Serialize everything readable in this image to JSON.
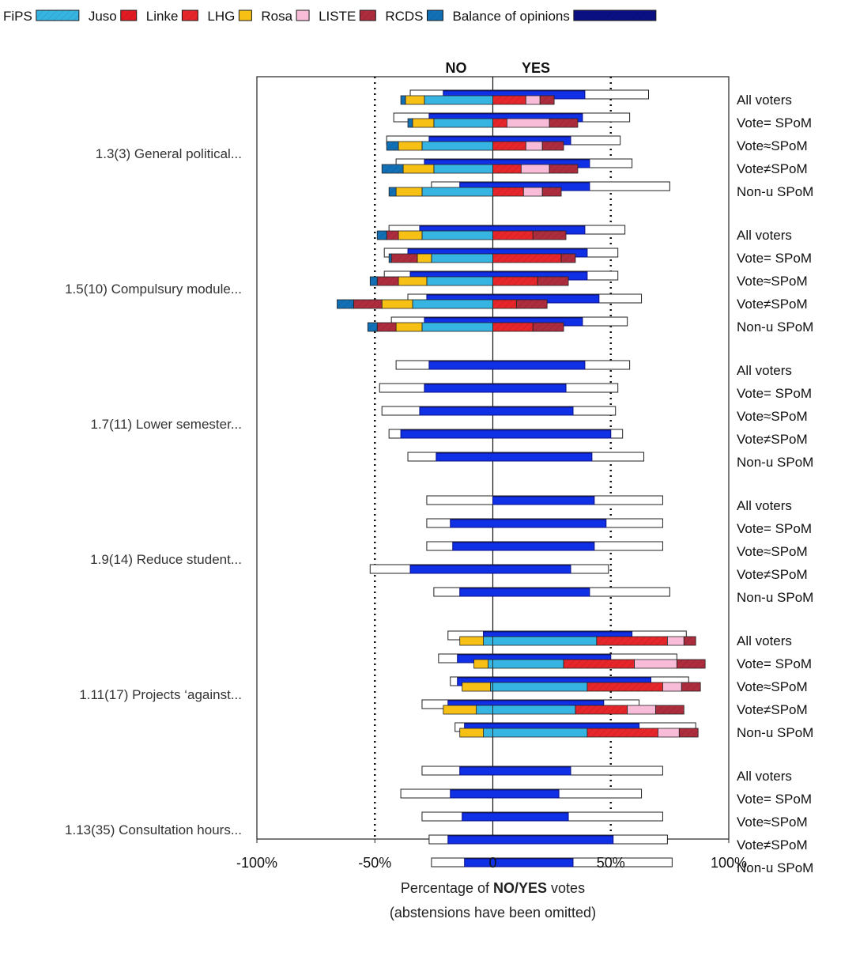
{
  "chart_data": {
    "type": "bar",
    "orientation": "horizontal-diverging",
    "header_no": "NO",
    "header_yes": "YES",
    "xlabel_prefix": "Percentage of ",
    "xlabel_bold": "NO/YES",
    "xlabel_suffix": " votes",
    "xlabel_note": "(abstensions have been omitted)",
    "xlim": [
      -100,
      100
    ],
    "x_ticks": [
      -100,
      -50,
      0,
      50,
      100
    ],
    "x_tick_labels": [
      "-100%",
      "-50%",
      "0",
      "50%",
      "100%"
    ],
    "dotted_reference_lines": [
      -50,
      50
    ],
    "legend_position": "top",
    "legend": [
      {
        "name": "FiPS",
        "color": "#36b4e2",
        "swatch": "long"
      },
      {
        "name": "Juso",
        "color": "#e21a22",
        "swatch": "hatched"
      },
      {
        "name": "Linke",
        "color": "#e6262a",
        "swatch": "hatched"
      },
      {
        "name": "LHG",
        "color": "#f6c015",
        "swatch": "plain"
      },
      {
        "name": "Rosa",
        "color": "#f8bcd8",
        "swatch": "plain"
      },
      {
        "name": "LISTE",
        "color": "#ad2c3d",
        "swatch": "hatched"
      },
      {
        "name": "RCDS",
        "color": "#1270b6",
        "swatch": "hatched"
      },
      {
        "name": "Balance of opinions",
        "color": "#0a0f84",
        "swatch": "balance"
      }
    ],
    "party_order": [
      "FiPS",
      "Juso",
      "Linke",
      "LHG",
      "Rosa",
      "LISTE",
      "RCDS"
    ],
    "balance_color": "#1030e6",
    "row_labels": [
      "All voters",
      "Vote= SPoM",
      "Vote≈SPoM",
      "Vote≠SPoM",
      "Non-u SPoM"
    ],
    "groups": [
      {
        "label": "1.3(3) General political...",
        "rows": [
          {
            "no": [
              29,
              0,
              0,
              8,
              0,
              0,
              2
            ],
            "yes": [
              0,
              0,
              14,
              0,
              6,
              6,
              0
            ],
            "balance": [
              -21,
              39
            ],
            "outline": [
              -35,
              66
            ]
          },
          {
            "no": [
              25,
              0,
              0,
              9,
              0,
              0,
              2
            ],
            "yes": [
              0,
              0,
              6,
              0,
              18,
              12,
              0
            ],
            "balance": [
              -27,
              38
            ],
            "outline": [
              -42,
              58
            ]
          },
          {
            "no": [
              30,
              0,
              0,
              10,
              0,
              0,
              5
            ],
            "yes": [
              0,
              0,
              14,
              0,
              7,
              9,
              0
            ],
            "balance": [
              -27,
              33
            ],
            "outline": [
              -45,
              54
            ]
          },
          {
            "no": [
              25,
              0,
              0,
              13,
              0,
              0,
              9
            ],
            "yes": [
              0,
              0,
              12,
              0,
              12,
              12,
              0
            ],
            "balance": [
              -29,
              41
            ],
            "outline": [
              -41,
              59
            ]
          },
          {
            "no": [
              30,
              0,
              0,
              11,
              0,
              0,
              3
            ],
            "yes": [
              0,
              0,
              13,
              0,
              8,
              8,
              0
            ],
            "balance": [
              -14,
              41
            ],
            "outline": [
              -26,
              75
            ]
          }
        ]
      },
      {
        "label": "1.5(10) Compulsury module...",
        "rows": [
          {
            "no": [
              30,
              0,
              0,
              10,
              0,
              5,
              4
            ],
            "yes": [
              0,
              0,
              17,
              0,
              0,
              14,
              0
            ],
            "balance": [
              -31,
              39
            ],
            "outline": [
              -44,
              56
            ]
          },
          {
            "no": [
              26,
              0,
              0,
              6,
              0,
              11,
              1
            ],
            "yes": [
              0,
              0,
              29,
              0,
              0,
              6,
              0
            ],
            "balance": [
              -36,
              40
            ],
            "outline": [
              -46,
              53
            ]
          },
          {
            "no": [
              28,
              0,
              0,
              12,
              0,
              9,
              3
            ],
            "yes": [
              0,
              0,
              19,
              0,
              0,
              13,
              0
            ],
            "balance": [
              -35,
              40
            ],
            "outline": [
              -46,
              53
            ]
          },
          {
            "no": [
              34,
              0,
              0,
              13,
              0,
              12,
              7
            ],
            "yes": [
              0,
              0,
              10,
              0,
              0,
              13,
              0
            ],
            "balance": [
              -28,
              45
            ],
            "outline": [
              -36,
              63
            ]
          },
          {
            "no": [
              30,
              0,
              0,
              11,
              0,
              8,
              4
            ],
            "yes": [
              0,
              0,
              17,
              0,
              0,
              13,
              0
            ],
            "balance": [
              -29,
              38
            ],
            "outline": [
              -43,
              57
            ]
          }
        ]
      },
      {
        "label": "1.7(11) Lower semester...",
        "rows": [
          {
            "no": [
              0,
              0,
              0,
              0,
              0,
              0,
              0
            ],
            "yes": [
              0,
              0,
              0,
              0,
              0,
              0,
              0
            ],
            "balance": [
              -27,
              39
            ],
            "outline": [
              -41,
              58
            ]
          },
          {
            "no": [
              0,
              0,
              0,
              0,
              0,
              0,
              0
            ],
            "yes": [
              0,
              0,
              0,
              0,
              0,
              0,
              0
            ],
            "balance": [
              -29,
              31
            ],
            "outline": [
              -48,
              53
            ]
          },
          {
            "no": [
              0,
              0,
              0,
              0,
              0,
              0,
              0
            ],
            "yes": [
              0,
              0,
              0,
              0,
              0,
              0,
              0
            ],
            "balance": [
              -31,
              34
            ],
            "outline": [
              -47,
              52
            ]
          },
          {
            "no": [
              0,
              0,
              0,
              0,
              0,
              0,
              0
            ],
            "yes": [
              0,
              0,
              0,
              0,
              0,
              0,
              0
            ],
            "balance": [
              -39,
              50
            ],
            "outline": [
              -44,
              55
            ]
          },
          {
            "no": [
              0,
              0,
              0,
              0,
              0,
              0,
              0
            ],
            "yes": [
              0,
              0,
              0,
              0,
              0,
              0,
              0
            ],
            "balance": [
              -24,
              42
            ],
            "outline": [
              -36,
              64
            ]
          }
        ]
      },
      {
        "label": "1.9(14) Reduce student...",
        "rows": [
          {
            "no": [
              0,
              0,
              0,
              0,
              0,
              0,
              0
            ],
            "yes": [
              0,
              0,
              0,
              0,
              0,
              0,
              0
            ],
            "balance": [
              0,
              43
            ],
            "outline": [
              -28,
              72
            ]
          },
          {
            "no": [
              0,
              0,
              0,
              0,
              0,
              0,
              0
            ],
            "yes": [
              0,
              0,
              0,
              0,
              0,
              0,
              0
            ],
            "balance": [
              -18,
              48
            ],
            "outline": [
              -28,
              72
            ]
          },
          {
            "no": [
              0,
              0,
              0,
              0,
              0,
              0,
              0
            ],
            "yes": [
              0,
              0,
              0,
              0,
              0,
              0,
              0
            ],
            "balance": [
              -17,
              43
            ],
            "outline": [
              -28,
              72
            ]
          },
          {
            "no": [
              0,
              0,
              0,
              0,
              0,
              0,
              0
            ],
            "yes": [
              0,
              0,
              0,
              0,
              0,
              0,
              0
            ],
            "balance": [
              -35,
              33
            ],
            "outline": [
              -52,
              49
            ]
          },
          {
            "no": [
              0,
              0,
              0,
              0,
              0,
              0,
              0
            ],
            "yes": [
              0,
              0,
              0,
              0,
              0,
              0,
              0
            ],
            "balance": [
              -14,
              41
            ],
            "outline": [
              -25,
              75
            ]
          }
        ]
      },
      {
        "label": "1.11(17) Projects ‘against...",
        "rows": [
          {
            "no": [
              4,
              0,
              0,
              10,
              0,
              0,
              0
            ],
            "yes": [
              44,
              0,
              30,
              0,
              7,
              5,
              0
            ],
            "balance": [
              -4,
              59
            ],
            "outline": [
              -19,
              82
            ]
          },
          {
            "no": [
              2,
              0,
              0,
              6,
              0,
              0,
              0
            ],
            "yes": [
              30,
              0,
              30,
              0,
              18,
              12,
              0
            ],
            "balance": [
              -15,
              50
            ],
            "outline": [
              -23,
              78
            ]
          },
          {
            "no": [
              1,
              0,
              0,
              12,
              0,
              0,
              0
            ],
            "yes": [
              40,
              0,
              32,
              0,
              8,
              8,
              0
            ],
            "balance": [
              -15,
              67
            ],
            "outline": [
              -18,
              83
            ]
          },
          {
            "no": [
              7,
              0,
              0,
              14,
              0,
              0,
              0
            ],
            "yes": [
              35,
              0,
              22,
              0,
              12,
              12,
              0
            ],
            "balance": [
              -19,
              47
            ],
            "outline": [
              -30,
              62
            ]
          },
          {
            "no": [
              4,
              0,
              0,
              10,
              0,
              0,
              0
            ],
            "yes": [
              40,
              0,
              30,
              0,
              9,
              8,
              0
            ],
            "balance": [
              -12,
              62
            ],
            "outline": [
              -16,
              86
            ]
          }
        ]
      },
      {
        "label": "1.13(35) Consultation hours...",
        "rows": [
          {
            "no": [
              0,
              0,
              0,
              0,
              0,
              0,
              0
            ],
            "yes": [
              0,
              0,
              0,
              0,
              0,
              0,
              0
            ],
            "balance": [
              -14,
              33
            ],
            "outline": [
              -30,
              72
            ]
          },
          {
            "no": [
              0,
              0,
              0,
              0,
              0,
              0,
              0
            ],
            "yes": [
              0,
              0,
              0,
              0,
              0,
              0,
              0
            ],
            "balance": [
              -18,
              28
            ],
            "outline": [
              -39,
              63
            ]
          },
          {
            "no": [
              0,
              0,
              0,
              0,
              0,
              0,
              0
            ],
            "yes": [
              0,
              0,
              0,
              0,
              0,
              0,
              0
            ],
            "balance": [
              -13,
              32
            ],
            "outline": [
              -30,
              72
            ]
          },
          {
            "no": [
              0,
              0,
              0,
              0,
              0,
              0,
              0
            ],
            "yes": [
              0,
              0,
              0,
              0,
              0,
              0,
              0
            ],
            "balance": [
              -19,
              51
            ],
            "outline": [
              -27,
              74
            ]
          },
          {
            "no": [
              0,
              0,
              0,
              0,
              0,
              0,
              0
            ],
            "yes": [
              0,
              0,
              0,
              0,
              0,
              0,
              0
            ],
            "balance": [
              -12,
              34
            ],
            "outline": [
              -26,
              76
            ]
          }
        ]
      }
    ]
  }
}
